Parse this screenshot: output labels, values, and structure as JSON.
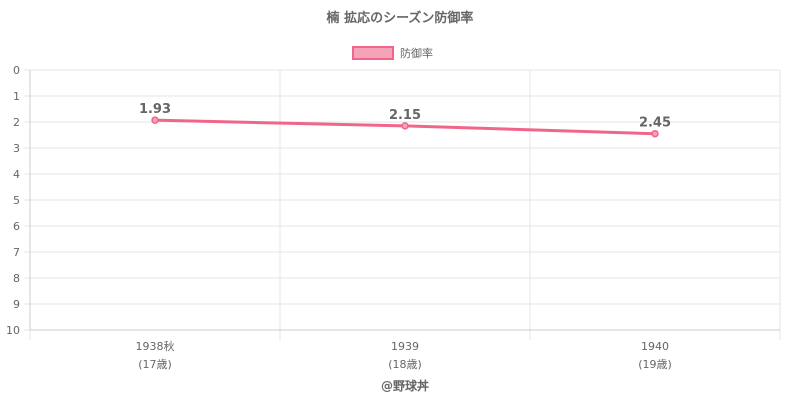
{
  "chart_data": {
    "type": "line",
    "title": "楠 拡応のシーズン防御率",
    "categories": [
      [
        "1938秋",
        "(17歳)"
      ],
      [
        "1939",
        "(18歳)"
      ],
      [
        "1940",
        "(19歳)"
      ]
    ],
    "series": [
      {
        "name": "防御率",
        "values": [
          1.93,
          2.15,
          2.45
        ],
        "labels": [
          "1.93",
          "2.15",
          "2.45"
        ]
      }
    ],
    "y_axis": {
      "min": 0,
      "max": 10,
      "step": 1,
      "reversed": true,
      "ticks": [
        "0",
        "1",
        "2",
        "3",
        "4",
        "5",
        "6",
        "7",
        "8",
        "9",
        "10"
      ]
    },
    "grid": true,
    "legend_position": "top",
    "colors": {
      "line": "#f0668a",
      "fill": "#f4a3b8",
      "grid": "#e6e6e6",
      "axis": "#cccccc",
      "text": "#666666"
    }
  },
  "credit": "@野球丼"
}
